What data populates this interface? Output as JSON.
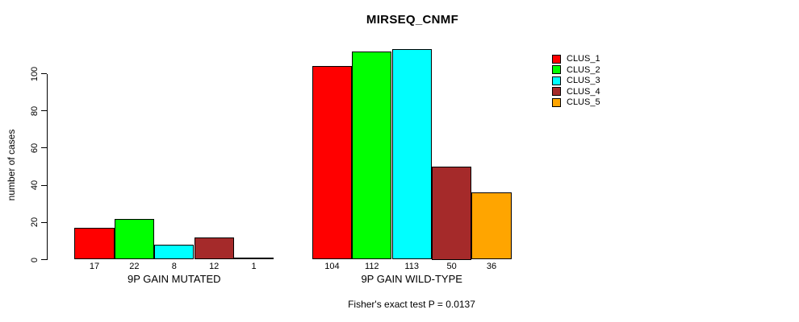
{
  "chart_data": {
    "type": "bar",
    "title": "MIRSEQ_CNMF",
    "ylabel": "number of cases",
    "subtitle": "Fisher's exact test P = 0.0137",
    "categories": [
      "9P GAIN MUTATED",
      "9P GAIN WILD-TYPE"
    ],
    "groups": [
      {
        "label": "9P GAIN MUTATED",
        "values": [
          17,
          22,
          8,
          12,
          1
        ]
      },
      {
        "label": "9P GAIN WILD-TYPE",
        "values": [
          104,
          112,
          113,
          50,
          36
        ]
      }
    ],
    "series": [
      "CLUS_1",
      "CLUS_2",
      "CLUS_3",
      "CLUS_4",
      "CLUS_5"
    ],
    "colors": [
      "#ff0000",
      "#00ff00",
      "#00ffff",
      "#a52a2a",
      "#ffa500"
    ],
    "yticks": [
      0,
      20,
      40,
      60,
      80,
      100
    ],
    "ylim": [
      0,
      113
    ],
    "xlabel": "",
    "grid": false,
    "legend_position": "right",
    "bar_value_labels": [
      17,
      22,
      8,
      12,
      1,
      104,
      112,
      113,
      50,
      36
    ]
  }
}
